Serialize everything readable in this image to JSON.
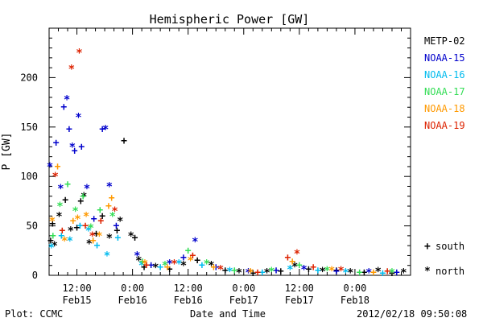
{
  "chart_data": {
    "type": "scatter",
    "title": "Hemispheric Power [GW]",
    "ylabel": "P [GW]",
    "xlabel": "Date and Time",
    "ylim": [
      0,
      250
    ],
    "xlim": [
      "2012-02-15 06:00",
      "2012-02-18 12:00"
    ],
    "grid": false,
    "legend_position": "right",
    "yticks": [
      {
        "value": 0,
        "label": "0"
      },
      {
        "value": 50,
        "label": "50"
      },
      {
        "value": 100,
        "label": "100"
      },
      {
        "value": 150,
        "label": "150"
      },
      {
        "value": 200,
        "label": "200"
      }
    ],
    "xticks": [
      {
        "time": "2012-02-15 12:00",
        "label1": "12:00",
        "label2": "Feb15"
      },
      {
        "time": "2012-02-16 00:00",
        "label1": "0:00",
        "label2": "Feb16"
      },
      {
        "time": "2012-02-16 12:00",
        "label1": "12:00",
        "label2": "Feb16"
      },
      {
        "time": "2012-02-17 00:00",
        "label1": "0:00",
        "label2": "Feb17"
      },
      {
        "time": "2012-02-17 12:00",
        "label1": "12:00",
        "label2": "Feb17"
      },
      {
        "time": "2012-02-18 00:00",
        "label1": "0:00",
        "label2": "Feb18"
      }
    ],
    "marker_legend": [
      {
        "symbol": "+",
        "label": "south"
      },
      {
        "symbol": "*",
        "label": "north"
      }
    ],
    "series": [
      {
        "name": "METP-02",
        "color": "#000000",
        "points": [
          {
            "t": "2012-02-15 06:20",
            "p": 35,
            "m": "+"
          },
          {
            "t": "2012-02-15 06:45",
            "p": 52,
            "m": "+"
          },
          {
            "t": "2012-02-15 07:10",
            "p": 30,
            "m": "*"
          },
          {
            "t": "2012-02-15 08:10",
            "p": 60,
            "m": "*"
          },
          {
            "t": "2012-02-15 09:30",
            "p": 76,
            "m": "+"
          },
          {
            "t": "2012-02-15 10:40",
            "p": 45,
            "m": "*"
          },
          {
            "t": "2012-02-15 12:00",
            "p": 48,
            "m": "+"
          },
          {
            "t": "2012-02-15 12:50",
            "p": 75,
            "m": "+"
          },
          {
            "t": "2012-02-15 13:30",
            "p": 80,
            "m": "*"
          },
          {
            "t": "2012-02-15 14:40",
            "p": 32,
            "m": "*"
          },
          {
            "t": "2012-02-15 16:10",
            "p": 42,
            "m": "+"
          },
          {
            "t": "2012-02-15 17:30",
            "p": 60,
            "m": "+"
          },
          {
            "t": "2012-02-15 19:00",
            "p": 38,
            "m": "*"
          },
          {
            "t": "2012-02-15 20:40",
            "p": 45,
            "m": "+"
          },
          {
            "t": "2012-02-15 21:20",
            "p": 55,
            "m": "*"
          },
          {
            "t": "2012-02-15 22:10",
            "p": 136,
            "m": "+"
          },
          {
            "t": "2012-02-15 23:40",
            "p": 40,
            "m": "*"
          },
          {
            "t": "2012-02-16 00:30",
            "p": 38,
            "m": "+"
          },
          {
            "t": "2012-02-16 01:20",
            "p": 15,
            "m": "*"
          },
          {
            "t": "2012-02-16 02:30",
            "p": 8,
            "m": "+"
          },
          {
            "t": "2012-02-16 05:00",
            "p": 8,
            "m": "*"
          },
          {
            "t": "2012-02-16 08:00",
            "p": 6,
            "m": "+"
          },
          {
            "t": "2012-02-16 11:00",
            "p": 10,
            "m": "*"
          },
          {
            "t": "2012-02-16 14:00",
            "p": 15,
            "m": "+"
          },
          {
            "t": "2012-02-16 17:00",
            "p": 10,
            "m": "*"
          },
          {
            "t": "2012-02-16 20:00",
            "p": 5,
            "m": "+"
          },
          {
            "t": "2012-02-16 23:00",
            "p": 3,
            "m": "*"
          },
          {
            "t": "2012-02-17 02:00",
            "p": 2,
            "m": "+"
          },
          {
            "t": "2012-02-17 05:00",
            "p": 3,
            "m": "*"
          },
          {
            "t": "2012-02-17 08:00",
            "p": 4,
            "m": "+"
          },
          {
            "t": "2012-02-17 11:00",
            "p": 9,
            "m": "*"
          },
          {
            "t": "2012-02-17 14:00",
            "p": 6,
            "m": "+"
          },
          {
            "t": "2012-02-17 17:00",
            "p": 4,
            "m": "*"
          },
          {
            "t": "2012-02-17 20:00",
            "p": 5,
            "m": "+"
          },
          {
            "t": "2012-02-17 23:00",
            "p": 3,
            "m": "*"
          },
          {
            "t": "2012-02-18 02:00",
            "p": 3,
            "m": "+"
          },
          {
            "t": "2012-02-18 05:00",
            "p": 4,
            "m": "*"
          },
          {
            "t": "2012-02-18 08:00",
            "p": 2,
            "m": "+"
          },
          {
            "t": "2012-02-18 10:30",
            "p": 3,
            "m": "*"
          }
        ]
      },
      {
        "name": "NOAA-15",
        "color": "#0000cc",
        "points": [
          {
            "t": "2012-02-15 06:10",
            "p": 110,
            "m": "*"
          },
          {
            "t": "2012-02-15 07:30",
            "p": 134,
            "m": "+"
          },
          {
            "t": "2012-02-15 08:30",
            "p": 88,
            "m": "*"
          },
          {
            "t": "2012-02-15 09:10",
            "p": 170,
            "m": "+"
          },
          {
            "t": "2012-02-15 09:50",
            "p": 178,
            "m": "*"
          },
          {
            "t": "2012-02-15 10:20",
            "p": 148,
            "m": "+"
          },
          {
            "t": "2012-02-15 11:00",
            "p": 130,
            "m": "*"
          },
          {
            "t": "2012-02-15 11:30",
            "p": 126,
            "m": "+"
          },
          {
            "t": "2012-02-15 12:20",
            "p": 160,
            "m": "*"
          },
          {
            "t": "2012-02-15 13:00",
            "p": 130,
            "m": "+"
          },
          {
            "t": "2012-02-15 14:10",
            "p": 88,
            "m": "*"
          },
          {
            "t": "2012-02-15 15:40",
            "p": 57,
            "m": "+"
          },
          {
            "t": "2012-02-15 17:30",
            "p": 148,
            "m": "+"
          },
          {
            "t": "2012-02-15 18:10",
            "p": 148,
            "m": "*"
          },
          {
            "t": "2012-02-15 19:00",
            "p": 90,
            "m": "*"
          },
          {
            "t": "2012-02-15 20:30",
            "p": 50,
            "m": "+"
          },
          {
            "t": "2012-02-16 01:00",
            "p": 20,
            "m": "*"
          },
          {
            "t": "2012-02-16 04:00",
            "p": 10,
            "m": "+"
          },
          {
            "t": "2012-02-16 08:00",
            "p": 12,
            "m": "*"
          },
          {
            "t": "2012-02-16 11:00",
            "p": 18,
            "m": "+"
          },
          {
            "t": "2012-02-16 13:30",
            "p": 34,
            "m": "*"
          },
          {
            "t": "2012-02-16 18:00",
            "p": 8,
            "m": "+"
          },
          {
            "t": "2012-02-17 01:00",
            "p": 3,
            "m": "*"
          },
          {
            "t": "2012-02-17 07:00",
            "p": 5,
            "m": "+"
          },
          {
            "t": "2012-02-17 13:00",
            "p": 6,
            "m": "*"
          },
          {
            "t": "2012-02-17 20:00",
            "p": 4,
            "m": "+"
          },
          {
            "t": "2012-02-18 03:00",
            "p": 3,
            "m": "*"
          },
          {
            "t": "2012-02-18 09:00",
            "p": 3,
            "m": "+"
          }
        ]
      },
      {
        "name": "NOAA-16",
        "color": "#00bbee",
        "points": [
          {
            "t": "2012-02-15 06:30",
            "p": 28,
            "m": "*"
          },
          {
            "t": "2012-02-15 08:40",
            "p": 40,
            "m": "+"
          },
          {
            "t": "2012-02-15 10:30",
            "p": 35,
            "m": "*"
          },
          {
            "t": "2012-02-15 12:40",
            "p": 50,
            "m": "+"
          },
          {
            "t": "2012-02-15 14:30",
            "p": 45,
            "m": "*"
          },
          {
            "t": "2012-02-15 16:20",
            "p": 30,
            "m": "+"
          },
          {
            "t": "2012-02-15 18:30",
            "p": 20,
            "m": "*"
          },
          {
            "t": "2012-02-15 20:50",
            "p": 38,
            "m": "+"
          },
          {
            "t": "2012-02-16 02:00",
            "p": 10,
            "m": "*"
          },
          {
            "t": "2012-02-16 06:00",
            "p": 8,
            "m": "+"
          },
          {
            "t": "2012-02-16 10:00",
            "p": 12,
            "m": "*"
          },
          {
            "t": "2012-02-16 15:00",
            "p": 10,
            "m": "+"
          },
          {
            "t": "2012-02-16 21:00",
            "p": 4,
            "m": "*"
          },
          {
            "t": "2012-02-17 04:00",
            "p": 3,
            "m": "+"
          },
          {
            "t": "2012-02-17 10:00",
            "p": 6,
            "m": "*"
          },
          {
            "t": "2012-02-17 16:00",
            "p": 5,
            "m": "+"
          },
          {
            "t": "2012-02-17 22:00",
            "p": 3,
            "m": "*"
          },
          {
            "t": "2012-02-18 06:00",
            "p": 2,
            "m": "+"
          }
        ]
      },
      {
        "name": "NOAA-17",
        "color": "#33dd55",
        "points": [
          {
            "t": "2012-02-15 06:50",
            "p": 40,
            "m": "+"
          },
          {
            "t": "2012-02-15 08:20",
            "p": 70,
            "m": "*"
          },
          {
            "t": "2012-02-15 10:00",
            "p": 92,
            "m": "+"
          },
          {
            "t": "2012-02-15 11:40",
            "p": 65,
            "m": "*"
          },
          {
            "t": "2012-02-15 13:20",
            "p": 80,
            "m": "+"
          },
          {
            "t": "2012-02-15 15:00",
            "p": 48,
            "m": "*"
          },
          {
            "t": "2012-02-15 17:00",
            "p": 66,
            "m": "+"
          },
          {
            "t": "2012-02-15 19:40",
            "p": 60,
            "m": "*"
          },
          {
            "t": "2012-02-16 02:10",
            "p": 14,
            "m": "+"
          },
          {
            "t": "2012-02-16 07:00",
            "p": 10,
            "m": "*"
          },
          {
            "t": "2012-02-16 12:00",
            "p": 25,
            "m": "+"
          },
          {
            "t": "2012-02-16 16:00",
            "p": 12,
            "m": "*"
          },
          {
            "t": "2012-02-16 22:00",
            "p": 5,
            "m": "+"
          },
          {
            "t": "2012-02-17 06:00",
            "p": 4,
            "m": "*"
          },
          {
            "t": "2012-02-17 12:00",
            "p": 10,
            "m": "+"
          },
          {
            "t": "2012-02-17 18:00",
            "p": 5,
            "m": "*"
          },
          {
            "t": "2012-02-18 01:00",
            "p": 3,
            "m": "+"
          },
          {
            "t": "2012-02-18 08:00",
            "p": 3,
            "m": "*"
          }
        ]
      },
      {
        "name": "NOAA-18",
        "color": "#ff9900",
        "points": [
          {
            "t": "2012-02-15 06:40",
            "p": 55,
            "m": "*"
          },
          {
            "t": "2012-02-15 07:50",
            "p": 110,
            "m": "+"
          },
          {
            "t": "2012-02-15 09:20",
            "p": 35,
            "m": "*"
          },
          {
            "t": "2012-02-15 11:10",
            "p": 55,
            "m": "+"
          },
          {
            "t": "2012-02-15 12:10",
            "p": 57,
            "m": "*"
          },
          {
            "t": "2012-02-15 14:00",
            "p": 60,
            "m": "*"
          },
          {
            "t": "2012-02-15 15:30",
            "p": 35,
            "m": "+"
          },
          {
            "t": "2012-02-15 16:50",
            "p": 40,
            "m": "*"
          },
          {
            "t": "2012-02-15 18:50",
            "p": 70,
            "m": "+"
          },
          {
            "t": "2012-02-15 19:30",
            "p": 78,
            "m": "+"
          },
          {
            "t": "2012-02-16 02:40",
            "p": 12,
            "m": "*"
          },
          {
            "t": "2012-02-16 07:30",
            "p": 8,
            "m": "+"
          },
          {
            "t": "2012-02-16 12:30",
            "p": 15,
            "m": "*"
          },
          {
            "t": "2012-02-16 17:30",
            "p": 8,
            "m": "+"
          },
          {
            "t": "2012-02-17 01:30",
            "p": 3,
            "m": "*"
          },
          {
            "t": "2012-02-17 10:30",
            "p": 14,
            "m": "+"
          },
          {
            "t": "2012-02-17 19:00",
            "p": 5,
            "m": "*"
          },
          {
            "t": "2012-02-18 04:00",
            "p": 3,
            "m": "+"
          }
        ]
      },
      {
        "name": "NOAA-19",
        "color": "#dd2200",
        "points": [
          {
            "t": "2012-02-15 07:20",
            "p": 100,
            "m": "*"
          },
          {
            "t": "2012-02-15 08:50",
            "p": 45,
            "m": "+"
          },
          {
            "t": "2012-02-15 10:50",
            "p": 209,
            "m": "*"
          },
          {
            "t": "2012-02-15 12:30",
            "p": 225,
            "m": "*"
          },
          {
            "t": "2012-02-15 13:50",
            "p": 50,
            "m": "+"
          },
          {
            "t": "2012-02-15 15:20",
            "p": 40,
            "m": "*"
          },
          {
            "t": "2012-02-15 17:10",
            "p": 55,
            "m": "+"
          },
          {
            "t": "2012-02-15 20:10",
            "p": 65,
            "m": "*"
          },
          {
            "t": "2012-02-16 03:00",
            "p": 10,
            "m": "+"
          },
          {
            "t": "2012-02-16 09:00",
            "p": 12,
            "m": "*"
          },
          {
            "t": "2012-02-16 13:00",
            "p": 20,
            "m": "+"
          },
          {
            "t": "2012-02-16 19:00",
            "p": 6,
            "m": "*"
          },
          {
            "t": "2012-02-17 03:00",
            "p": 3,
            "m": "+"
          },
          {
            "t": "2012-02-17 09:30",
            "p": 18,
            "m": "+"
          },
          {
            "t": "2012-02-17 11:30",
            "p": 22,
            "m": "*"
          },
          {
            "t": "2012-02-17 15:00",
            "p": 8,
            "m": "+"
          },
          {
            "t": "2012-02-17 21:00",
            "p": 5,
            "m": "*"
          },
          {
            "t": "2012-02-18 07:00",
            "p": 4,
            "m": "+"
          }
        ]
      }
    ]
  },
  "footer": {
    "left": "Plot: CCMC",
    "center": "Date and Time",
    "right": "2012/02/18 09:50:08"
  }
}
